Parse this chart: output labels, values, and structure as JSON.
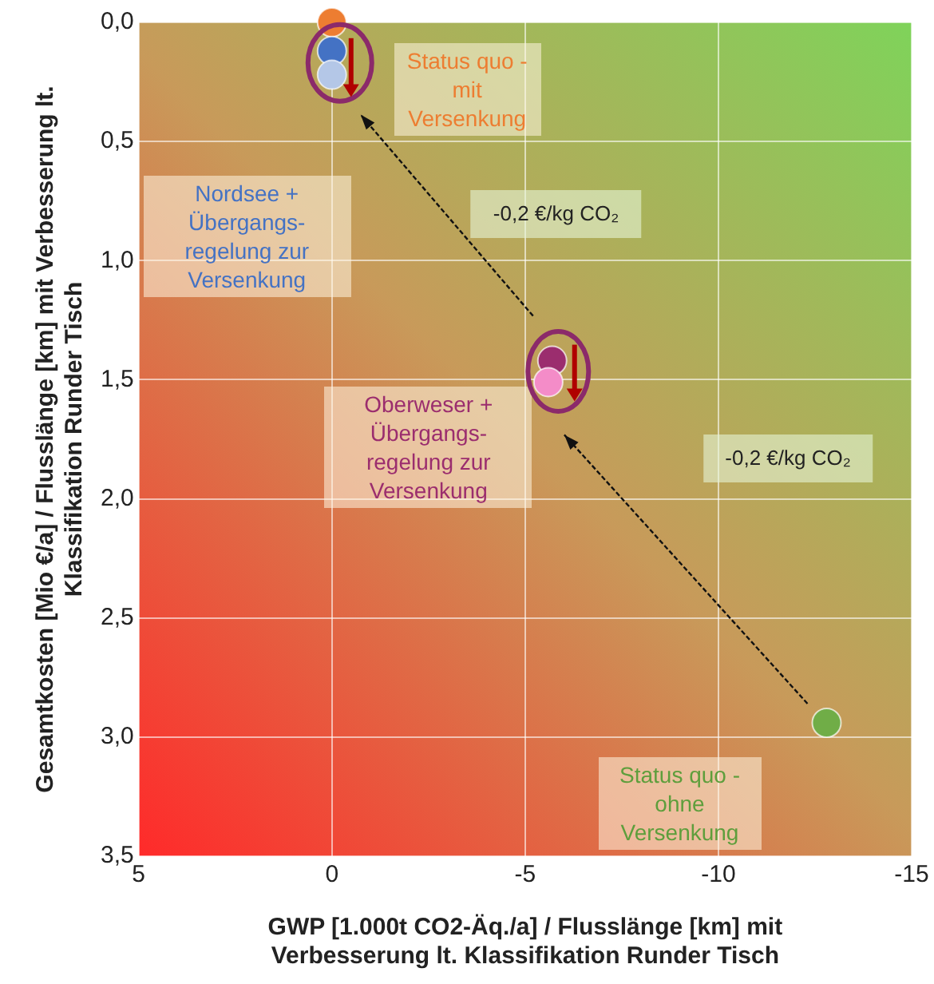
{
  "chart_data": {
    "type": "scatter",
    "xlabel": "GWP [1.000t CO2-Äq./a] / Flusslänge [km] mit Verbesserung lt. Klassifikation Runder Tisch",
    "ylabel": "Gesamtkosten [Mio €/a] / Flusslänge [km] mit Verbesserung lt. Klassifikation Runder Tisch",
    "series": [
      {
        "x": [
          0,
          0,
          0,
          -5.7,
          -5.6,
          -12.8
        ],
        "values": [
          0,
          0.12,
          0.22,
          1.42,
          1.51,
          2.94
        ],
        "colors": [
          "#ed7d31",
          "#4472c4",
          "#b4c7e7",
          "#9b2d6e",
          "#f48cc8",
          "#70ad47"
        ]
      }
    ],
    "xlim": [
      5,
      -15
    ],
    "xticks": [
      5,
      0,
      -5,
      -10,
      -15
    ],
    "ylim": [
      3.5,
      0
    ],
    "yticks": [
      {
        "value": 0,
        "label": "0,0"
      },
      {
        "value": 0.5,
        "label": "0,5"
      },
      {
        "value": 1,
        "label": "1,0"
      },
      {
        "value": 1.5,
        "label": "1,5"
      },
      {
        "value": 2,
        "label": "2,0"
      },
      {
        "value": 2.5,
        "label": "2,5"
      },
      {
        "value": 3,
        "label": "3,0"
      },
      {
        "value": 3.5,
        "label": "3,5"
      }
    ],
    "grid": true,
    "marker": "circle",
    "legend": false,
    "annotations": [
      "Status quo - mit Versenkung",
      "Nordsee + Übergangs-regelung zur Versenkung",
      "-0,2 €/kg CO₂",
      "Oberweser + Übergangs-regelung zur Versenkung",
      "-0,2 €/kg CO₂",
      "Status quo - ohne Versenkung"
    ]
  }
}
